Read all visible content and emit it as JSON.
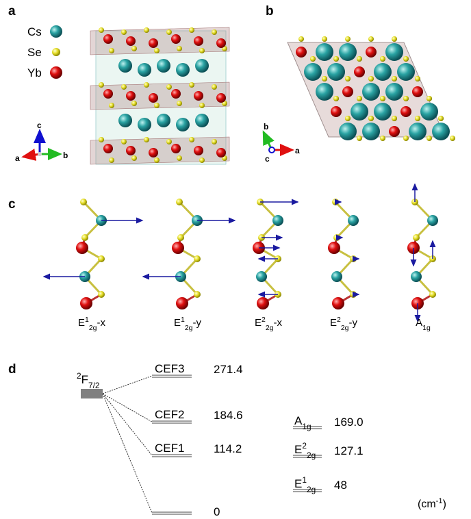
{
  "panels": {
    "a": {
      "label": "a",
      "legend": [
        "Cs",
        "Se",
        "Yb"
      ],
      "axes": [
        "c",
        "a",
        "b"
      ]
    },
    "b": {
      "label": "b",
      "axes": [
        "b",
        "c",
        "a"
      ]
    },
    "c": {
      "label": "c",
      "modes": [
        [
          {
            "base": "E"
          },
          {
            "sup": "1"
          },
          {
            "sub": "2g"
          },
          {
            "base": "-x"
          }
        ],
        [
          {
            "base": "E"
          },
          {
            "sup": "1"
          },
          {
            "sub": "2g"
          },
          {
            "base": "-y"
          }
        ],
        [
          {
            "base": "E"
          },
          {
            "sup": "2"
          },
          {
            "sub": "2g"
          },
          {
            "base": "-x"
          }
        ],
        [
          {
            "base": "E"
          },
          {
            "sup": "2"
          },
          {
            "sub": "2g"
          },
          {
            "base": "-y"
          }
        ],
        [
          {
            "base": "A"
          },
          {
            "sub": "1g"
          }
        ]
      ]
    },
    "d": {
      "label": "d",
      "term": [
        {
          "sup": "2"
        },
        {
          "base": "F"
        },
        {
          "sub": "7/2"
        }
      ],
      "cef": [
        {
          "label": "CEF3",
          "energy": "271.4"
        },
        {
          "label": "CEF2",
          "energy": "184.6"
        },
        {
          "label": "CEF1",
          "energy": "114.2"
        },
        {
          "energy": "0"
        }
      ],
      "phonons": [
        {
          "label": [
            {
              "base": "A"
            },
            {
              "sub": "1g"
            }
          ],
          "energy": "169.0"
        },
        {
          "label": [
            {
              "base": "E"
            },
            {
              "sup": "2"
            },
            {
              "sub": "2g"
            }
          ],
          "energy": "127.1"
        },
        {
          "label": [
            {
              "base": "E"
            },
            {
              "sup": "1"
            },
            {
              "sub": "2g"
            }
          ],
          "energy": "48"
        }
      ],
      "unit": [
        {
          "base": "(cm"
        },
        {
          "sup": "-1"
        },
        {
          "base": ")"
        }
      ]
    }
  }
}
